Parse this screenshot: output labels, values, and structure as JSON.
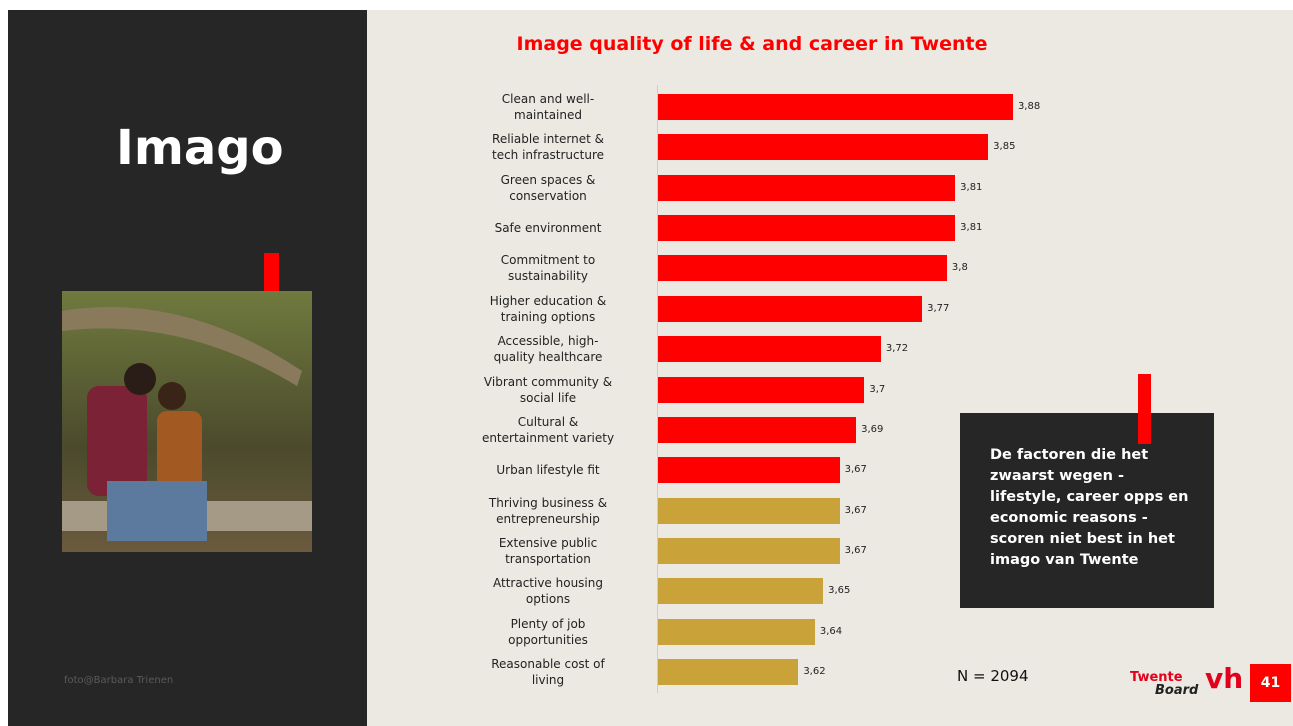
{
  "slide": {
    "heading": "Imago",
    "photo_credit": "foto@Barbara Trienen",
    "callout": "De factoren die het\nzwaarst wegen -\nlifestyle, career opps en\neconomic reasons -\nscoren niet best in het\nimago van Twente",
    "sample_size": "N = 2094",
    "logo_top": "Twente",
    "logo_bottom": "Board",
    "logo_mark": "vh",
    "page_number": "41"
  },
  "chart_data": {
    "type": "bar",
    "orientation": "horizontal",
    "title": "Image quality of life & and career in Twente",
    "categories": [
      "Clean and well-\nmaintained",
      "Reliable internet &\ntech infrastructure",
      "Green spaces &\nconservation",
      "Safe environment",
      "Commitment to\nsustainability",
      "Higher education &\ntraining options",
      "Accessible, high-\nquality healthcare",
      "Vibrant community &\nsocial life",
      "Cultural &\nentertainment variety",
      "Urban lifestyle fit",
      "Thriving business &\nentrepreneurship",
      "Extensive public\ntransportation",
      "Attractive housing\noptions",
      "Plenty of job\nopportunities",
      "Reasonable cost of\nliving"
    ],
    "values": [
      3.88,
      3.85,
      3.81,
      3.81,
      3.8,
      3.77,
      3.72,
      3.7,
      3.69,
      3.67,
      3.67,
      3.67,
      3.65,
      3.64,
      3.62
    ],
    "value_labels": [
      "3,88",
      "3,85",
      "3,81",
      "3,81",
      "3,8",
      "3,77",
      "3,72",
      "3,7",
      "3,69",
      "3,67",
      "3,67",
      "3,67",
      "3,65",
      "3,64",
      "3,62"
    ],
    "colors": [
      "#ff0000",
      "#ff0000",
      "#ff0000",
      "#ff0000",
      "#ff0000",
      "#ff0000",
      "#ff0000",
      "#ff0000",
      "#ff0000",
      "#ff0000",
      "#c9a23a",
      "#c9a23a",
      "#c9a23a",
      "#c9a23a",
      "#c9a23a"
    ],
    "xlim": [
      3.45,
      4.0
    ]
  }
}
